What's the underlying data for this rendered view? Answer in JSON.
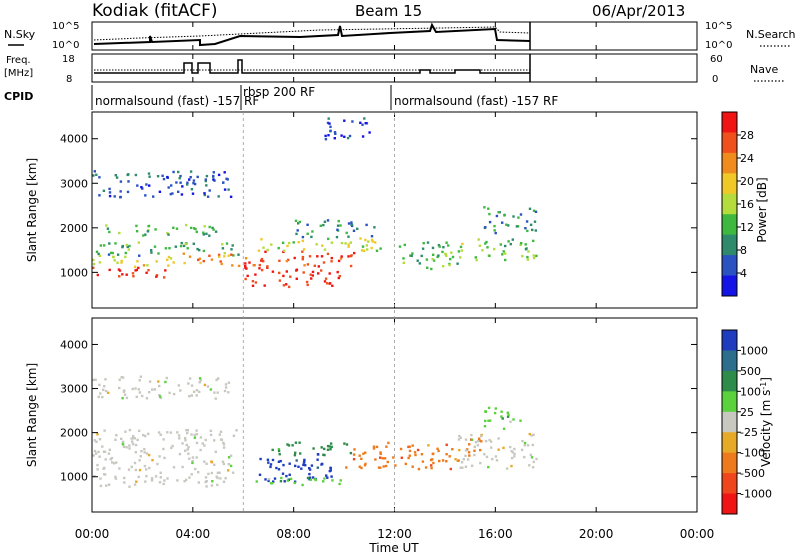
{
  "header": {
    "radar": "Kodiak (fitACF)",
    "beam": "Beam 15",
    "date": "06/Apr/2013"
  },
  "panels": {
    "noise": {
      "left_label": "N.Sky",
      "right_label": "N.Search",
      "ticks_left": [
        "10^5",
        "10^0"
      ],
      "ticks_right": [
        "10^5",
        "10^0"
      ]
    },
    "freq": {
      "left_label_1": "Freq.",
      "left_label_2": "[MHz]",
      "right_label": "Nave",
      "ticks_left": [
        "18",
        "8"
      ],
      "ticks_right": [
        "60",
        "0"
      ]
    },
    "cpid": {
      "label": "CPID",
      "segments": [
        {
          "text": "normalsound (fast) -157 RF",
          "start_hour": 0.0
        },
        {
          "text": "rbsp 200 RF",
          "start_hour": 6.0
        },
        {
          "text": "normalsound (fast) -157 RF",
          "start_hour": 12.0
        }
      ]
    }
  },
  "colors": {
    "power": [
      "#1414e6",
      "#2a52c0",
      "#2e8a6a",
      "#3fb83f",
      "#b4dc3c",
      "#f0c828",
      "#f08c1e",
      "#f0501e",
      "#f01414"
    ],
    "velocity": [
      "#1e3cbe",
      "#2c6e8c",
      "#2e8c4a",
      "#5ad23c",
      "#c8c8c0",
      "#e6aa28",
      "#ee7a1e",
      "#f0461e",
      "#f01414"
    ]
  },
  "chart_data": [
    {
      "type": "heatmap",
      "title": "",
      "xlabel": "Time UT",
      "ylabel": "Slant Range [km]",
      "colorbar_label": "Power [dB]",
      "xlim": [
        0,
        24
      ],
      "ylim": [
        200,
        4600
      ],
      "x_ticks": [
        "00:00",
        "04:00",
        "08:00",
        "12:00",
        "16:00",
        "20:00",
        "00:00"
      ],
      "y_ticks": [
        1000,
        2000,
        3000,
        4000
      ],
      "colorbar_ticks": [
        4,
        8,
        12,
        16,
        20,
        24,
        28
      ],
      "colorbar_range": [
        0,
        32
      ],
      "regions": [
        {
          "t0": 0.0,
          "t1": 3.1,
          "r0": 900,
          "r1": 1150,
          "value": 29
        },
        {
          "t0": 0.0,
          "t1": 3.4,
          "r0": 1150,
          "r1": 1400,
          "value": 18
        },
        {
          "t0": 0.0,
          "t1": 5.8,
          "r0": 1400,
          "r1": 1700,
          "value": 11
        },
        {
          "t0": 0.0,
          "t1": 5.0,
          "r0": 1850,
          "r1": 2100,
          "value": 12
        },
        {
          "t0": 0.0,
          "t1": 5.5,
          "r0": 2700,
          "r1": 3300,
          "value": 6
        },
        {
          "t0": 3.5,
          "t1": 5.9,
          "r0": 1150,
          "r1": 1450,
          "value": 24
        },
        {
          "t0": 6.0,
          "t1": 9.8,
          "r0": 700,
          "r1": 1150,
          "value": 29
        },
        {
          "t0": 6.0,
          "t1": 10.5,
          "r0": 1150,
          "r1": 1500,
          "value": 28
        },
        {
          "t0": 6.5,
          "t1": 11.5,
          "r0": 1500,
          "r1": 1800,
          "value": 17
        },
        {
          "t0": 8.0,
          "t1": 11.2,
          "r0": 1800,
          "r1": 2200,
          "value": 8
        },
        {
          "t0": 12.0,
          "t1": 14.5,
          "r0": 1100,
          "r1": 1700,
          "value": 12
        },
        {
          "t0": 14.5,
          "t1": 17.6,
          "r0": 1300,
          "r1": 1800,
          "value": 14
        },
        {
          "t0": 15.5,
          "t1": 17.6,
          "r0": 1900,
          "r1": 2500,
          "value": 9
        },
        {
          "t0": 9.0,
          "t1": 11.0,
          "r0": 4000,
          "r1": 4500,
          "value": 5
        }
      ]
    },
    {
      "type": "heatmap",
      "title": "",
      "xlabel": "Time UT",
      "ylabel": "Slant Range [km]",
      "colorbar_label": "Velocity [m s^-1]",
      "xlim": [
        0,
        24
      ],
      "ylim": [
        200,
        4600
      ],
      "x_ticks": [
        "00:00",
        "04:00",
        "08:00",
        "12:00",
        "16:00",
        "20:00",
        "00:00"
      ],
      "y_ticks": [
        1000,
        2000,
        3000,
        4000
      ],
      "colorbar_ticks": [
        1000,
        500,
        100,
        25,
        -25,
        -100,
        -500,
        -1000
      ],
      "regions": [
        {
          "t0": 0.0,
          "t1": 5.8,
          "r0": 800,
          "r1": 2100,
          "value_class": 4
        },
        {
          "t0": 6.5,
          "t1": 9.5,
          "r0": 900,
          "r1": 1600,
          "value_class": 0
        },
        {
          "t0": 7.0,
          "t1": 10.5,
          "r0": 1500,
          "r1": 1800,
          "value_class": 2
        },
        {
          "t0": 6.3,
          "t1": 10.0,
          "r0": 800,
          "r1": 1000,
          "value_class": 3
        },
        {
          "t0": 10.0,
          "t1": 14.5,
          "r0": 1200,
          "r1": 1800,
          "value_class": 6
        },
        {
          "t0": 14.5,
          "t1": 15.5,
          "r0": 1500,
          "r1": 1900,
          "value_class": 6
        },
        {
          "t0": 14.5,
          "t1": 17.6,
          "r0": 1200,
          "r1": 2000,
          "value_class": 4
        },
        {
          "t0": 15.5,
          "t1": 17.0,
          "r0": 2100,
          "r1": 2600,
          "value_class": 3
        },
        {
          "t0": 0.0,
          "t1": 5.5,
          "r0": 2800,
          "r1": 3300,
          "value_class": 4
        }
      ]
    }
  ]
}
